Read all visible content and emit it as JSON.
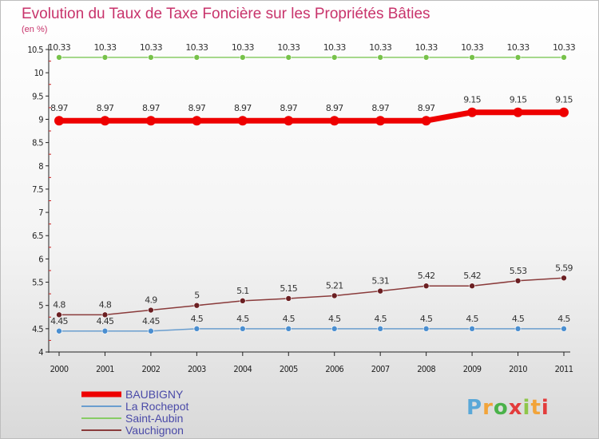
{
  "chart_data": {
    "type": "line",
    "title": "Evolution du Taux de Taxe Foncière sur les Propriétés Bâties",
    "unit_label": "(en %)",
    "x": [
      "2000",
      "2001",
      "2002",
      "2003",
      "2004",
      "2005",
      "2006",
      "2007",
      "2008",
      "2009",
      "2010",
      "2011"
    ],
    "y_ticks": [
      "4",
      "4.5",
      "5",
      "5.5",
      "6",
      "6.5",
      "7",
      "7.5",
      "8",
      "8.5",
      "9",
      "9.5",
      "10",
      "10.5"
    ],
    "ylim": [
      4,
      10.5
    ],
    "series": [
      {
        "name": "BAUBIGNY",
        "color": "#ee0000",
        "line_width": 7,
        "marker_radius": 6,
        "values": [
          8.97,
          8.97,
          8.97,
          8.97,
          8.97,
          8.97,
          8.97,
          8.97,
          8.97,
          9.15,
          9.15,
          9.15
        ],
        "labels": [
          "8.97",
          "8.97",
          "8.97",
          "8.97",
          "8.97",
          "8.97",
          "8.97",
          "8.97",
          "8.97",
          "9.15",
          "9.15",
          "9.15"
        ]
      },
      {
        "name": "La Rochepot",
        "color": "#6a9ecf",
        "marker_color": "#4a8ed0",
        "line_width": 1.5,
        "marker_radius": 3.5,
        "values": [
          4.45,
          4.45,
          4.45,
          4.5,
          4.5,
          4.5,
          4.5,
          4.5,
          4.5,
          4.5,
          4.5,
          4.5
        ],
        "labels": [
          "4.45",
          "4.45",
          "4.45",
          "4.5",
          "4.5",
          "4.5",
          "4.5",
          "4.5",
          "4.5",
          "4.5",
          "4.5",
          "4.5"
        ]
      },
      {
        "name": "Saint-Aubin",
        "color": "#88cc66",
        "marker_color": "#77c24a",
        "line_width": 1.5,
        "marker_radius": 3.5,
        "values": [
          10.33,
          10.33,
          10.33,
          10.33,
          10.33,
          10.33,
          10.33,
          10.33,
          10.33,
          10.33,
          10.33,
          10.33
        ],
        "labels": [
          "10.33",
          "10.33",
          "10.33",
          "10.33",
          "10.33",
          "10.33",
          "10.33",
          "10.33",
          "10.33",
          "10.33",
          "10.33",
          "10.33"
        ]
      },
      {
        "name": "Vauchignon",
        "color": "#8a3b3b",
        "marker_color": "#6b1f22",
        "line_width": 1.5,
        "marker_radius": 3.5,
        "values": [
          4.8,
          4.8,
          4.9,
          5,
          5.1,
          5.15,
          5.21,
          5.31,
          5.42,
          5.42,
          5.53,
          5.59
        ],
        "labels": [
          "4.8",
          "4.8",
          "4.9",
          "5",
          "5.1",
          "5.15",
          "5.21",
          "5.31",
          "5.42",
          "5.42",
          "5.53",
          "5.59"
        ]
      }
    ],
    "legend": [
      "BAUBIGNY",
      "La Rochepot",
      "Saint-Aubin",
      "Vauchignon"
    ]
  },
  "branding": {
    "logo_text": "Proxiti",
    "logo_colors": [
      "#5aa8d8",
      "#f2a43a",
      "#4ab24a",
      "#e33c3c",
      "#8fc64a",
      "#f2a43a",
      "#e33c3c"
    ]
  }
}
